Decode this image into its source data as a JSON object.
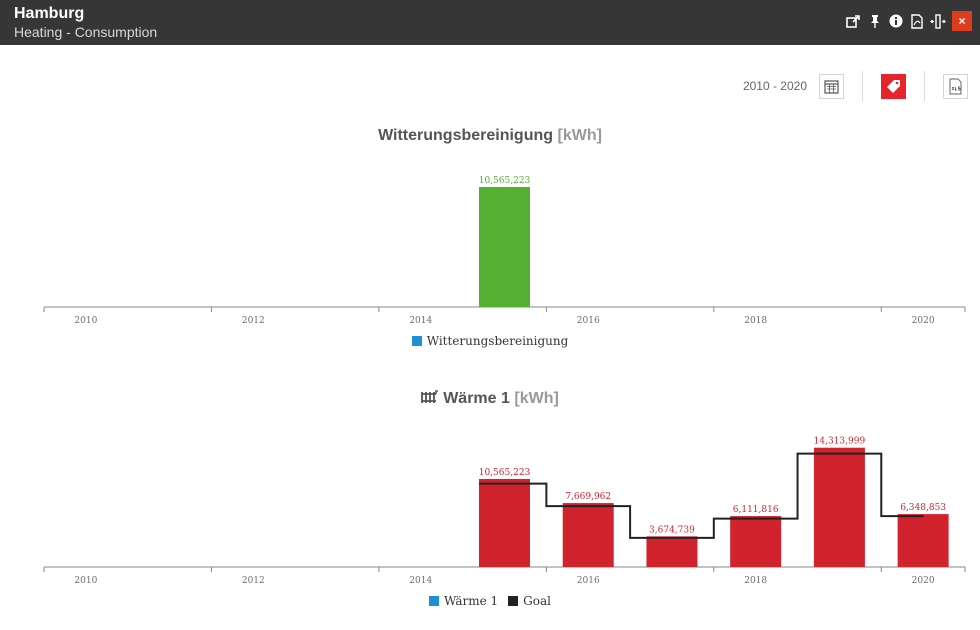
{
  "header": {
    "title": "Hamburg",
    "subtitle": "Heating - Consumption",
    "close_label": "×",
    "icons": [
      "external-link-icon",
      "pin-icon",
      "info-icon",
      "pdf-icon",
      "resize-icon"
    ]
  },
  "toolbar": {
    "range": "2010 - 2020"
  },
  "colors": {
    "green": "#55b032",
    "red": "#d0232d",
    "legend_blue": "#1e8fd4",
    "goal": "#222222",
    "header_bg": "#363636"
  },
  "chart_data": [
    {
      "type": "bar",
      "title": "Witterungsbereinigung",
      "unit": "[kWh]",
      "x_ticks": [
        "2010",
        "2012",
        "2014",
        "2016",
        "2018",
        "2020"
      ],
      "series": [
        {
          "name": "Witterungsbereinigung",
          "x": [
            2015
          ],
          "values": [
            10565223
          ],
          "labels": [
            "10,565,223"
          ]
        }
      ],
      "ylim": [
        0,
        11000000
      ],
      "legend": "bottom-center",
      "grid": false
    },
    {
      "type": "bar",
      "title": "Wärme 1",
      "unit": "[kWh]",
      "x_ticks": [
        "2010",
        "2012",
        "2014",
        "2016",
        "2018",
        "2020"
      ],
      "series": [
        {
          "name": "Wärme 1",
          "x": [
            2015,
            2016,
            2017,
            2018,
            2019,
            2020
          ],
          "values": [
            10565223,
            7669962,
            3674739,
            6111816,
            14313999,
            6348853
          ],
          "labels": [
            "10,565,223",
            "7,669,962",
            "3,674,739",
            "6,111,816",
            "14,313,999",
            "6,348,853"
          ]
        },
        {
          "name": "Goal",
          "type": "step",
          "x": [
            2015,
            2016,
            2017,
            2018,
            2019,
            2020
          ],
          "values": [
            10000000,
            7300000,
            3500000,
            5800000,
            13600000,
            6100000
          ]
        }
      ],
      "ylim": [
        0,
        15000000
      ],
      "legend": "bottom-center",
      "grid": false
    }
  ]
}
